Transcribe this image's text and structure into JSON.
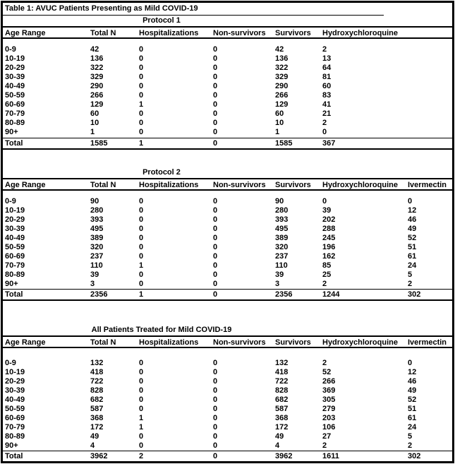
{
  "table_title": "Table 1: AVUC Patients Presenting as Mild COVID-19",
  "tables": [
    {
      "section_title": "Protocol 1",
      "headers": [
        "Age Range",
        "Total N",
        "Hospitalizations",
        "Non-survivors",
        "Survivors",
        "Hydroxychloroquine"
      ],
      "rows": [
        [
          "0-9",
          "42",
          "0",
          "0",
          "42",
          "2"
        ],
        [
          "10-19",
          "136",
          "0",
          "0",
          "136",
          "13"
        ],
        [
          "20-29",
          "322",
          "0",
          "0",
          "322",
          "64"
        ],
        [
          "30-39",
          "329",
          "0",
          "0",
          "329",
          "81"
        ],
        [
          "40-49",
          "290",
          "0",
          "0",
          "290",
          "60"
        ],
        [
          "50-59",
          "266",
          "0",
          "0",
          "266",
          "83"
        ],
        [
          "60-69",
          "129",
          "1",
          "0",
          "129",
          "41"
        ],
        [
          "70-79",
          "60",
          "0",
          "0",
          "60",
          "21"
        ],
        [
          "80-89",
          "10",
          "0",
          "0",
          "10",
          "2"
        ],
        [
          "90+",
          "1",
          "0",
          "0",
          "1",
          "0"
        ]
      ],
      "total": [
        "Total",
        "1585",
        "1",
        "0",
        "1585",
        "367"
      ]
    },
    {
      "section_title": "Protocol 2",
      "headers": [
        "Age Range",
        "Total N",
        "Hospitalizations",
        "Non-survivors",
        "Survivors",
        "Hydroxychloroquine",
        "Ivermectin"
      ],
      "rows": [
        [
          "0-9",
          "90",
          "0",
          "0",
          "90",
          "0",
          "0"
        ],
        [
          "10-19",
          "280",
          "0",
          "0",
          "280",
          "39",
          "12"
        ],
        [
          "20-29",
          "393",
          "0",
          "0",
          "393",
          "202",
          "46"
        ],
        [
          "30-39",
          "495",
          "0",
          "0",
          "495",
          "288",
          "49"
        ],
        [
          "40-49",
          "389",
          "0",
          "0",
          "389",
          "245",
          "52"
        ],
        [
          "50-59",
          "320",
          "0",
          "0",
          "320",
          "196",
          "51"
        ],
        [
          "60-69",
          "237",
          "0",
          "0",
          "237",
          "162",
          "61"
        ],
        [
          "70-79",
          "110",
          "1",
          "0",
          "110",
          "85",
          "24"
        ],
        [
          "80-89",
          "39",
          "0",
          "0",
          "39",
          "25",
          "5"
        ],
        [
          "90+",
          "3",
          "0",
          "0",
          "3",
          "2",
          "2"
        ]
      ],
      "total": [
        "Total",
        "2356",
        "1",
        "0",
        "2356",
        "1244",
        "302"
      ]
    },
    {
      "section_title": "All Patients Treated for Mild COVID-19",
      "headers": [
        "Age Range",
        "Total N",
        "Hospitalizations",
        "Non-survivors",
        "Survivors",
        "Hydroxychloroquine",
        "Ivermectin"
      ],
      "rows": [
        [
          "0-9",
          "132",
          "0",
          "0",
          "132",
          "2",
          "0"
        ],
        [
          "10-19",
          "418",
          "0",
          "0",
          "418",
          "52",
          "12"
        ],
        [
          "20-29",
          "722",
          "0",
          "0",
          "722",
          "266",
          "46"
        ],
        [
          "30-39",
          "828",
          "0",
          "0",
          "828",
          "369",
          "49"
        ],
        [
          "40-49",
          "682",
          "0",
          "0",
          "682",
          "305",
          "52"
        ],
        [
          "50-59",
          "587",
          "0",
          "0",
          "587",
          "279",
          "51"
        ],
        [
          "60-69",
          "368",
          "1",
          "0",
          "368",
          "203",
          "61"
        ],
        [
          "70-79",
          "172",
          "1",
          "0",
          "172",
          "106",
          "24"
        ],
        [
          "80-89",
          "49",
          "0",
          "0",
          "49",
          "27",
          "5"
        ],
        [
          "90+",
          "4",
          "0",
          "0",
          "4",
          "2",
          "2"
        ]
      ],
      "total": [
        "Total",
        "3962",
        "2",
        "0",
        "3962",
        "1611",
        "302"
      ]
    }
  ]
}
